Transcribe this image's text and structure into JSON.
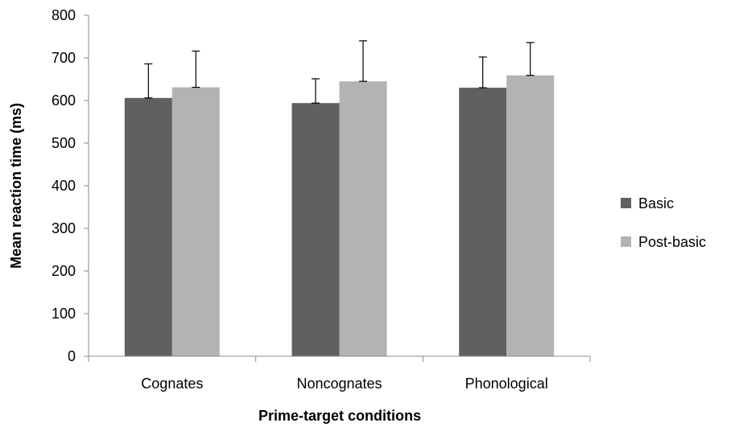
{
  "chart_data": {
    "type": "bar",
    "title": "",
    "xlabel": "Prime-target conditions",
    "ylabel": "Mean reaction time (ms)",
    "ylim": [
      0,
      800
    ],
    "yticks": [
      "0",
      "100",
      "200",
      "300",
      "400",
      "500",
      "600",
      "700",
      "800"
    ],
    "grid": false,
    "legend_position": "right",
    "categories": [
      "Cognates",
      "Noncognates",
      "Phonological"
    ],
    "series": [
      {
        "name": "Basic",
        "color": "#606060",
        "values": [
          606,
          594,
          630
        ],
        "errors": [
          80,
          57,
          72
        ]
      },
      {
        "name": "Post-basic",
        "color": "#b3b3b3",
        "values": [
          631,
          645,
          659
        ],
        "errors": [
          85,
          95,
          77
        ]
      }
    ]
  }
}
